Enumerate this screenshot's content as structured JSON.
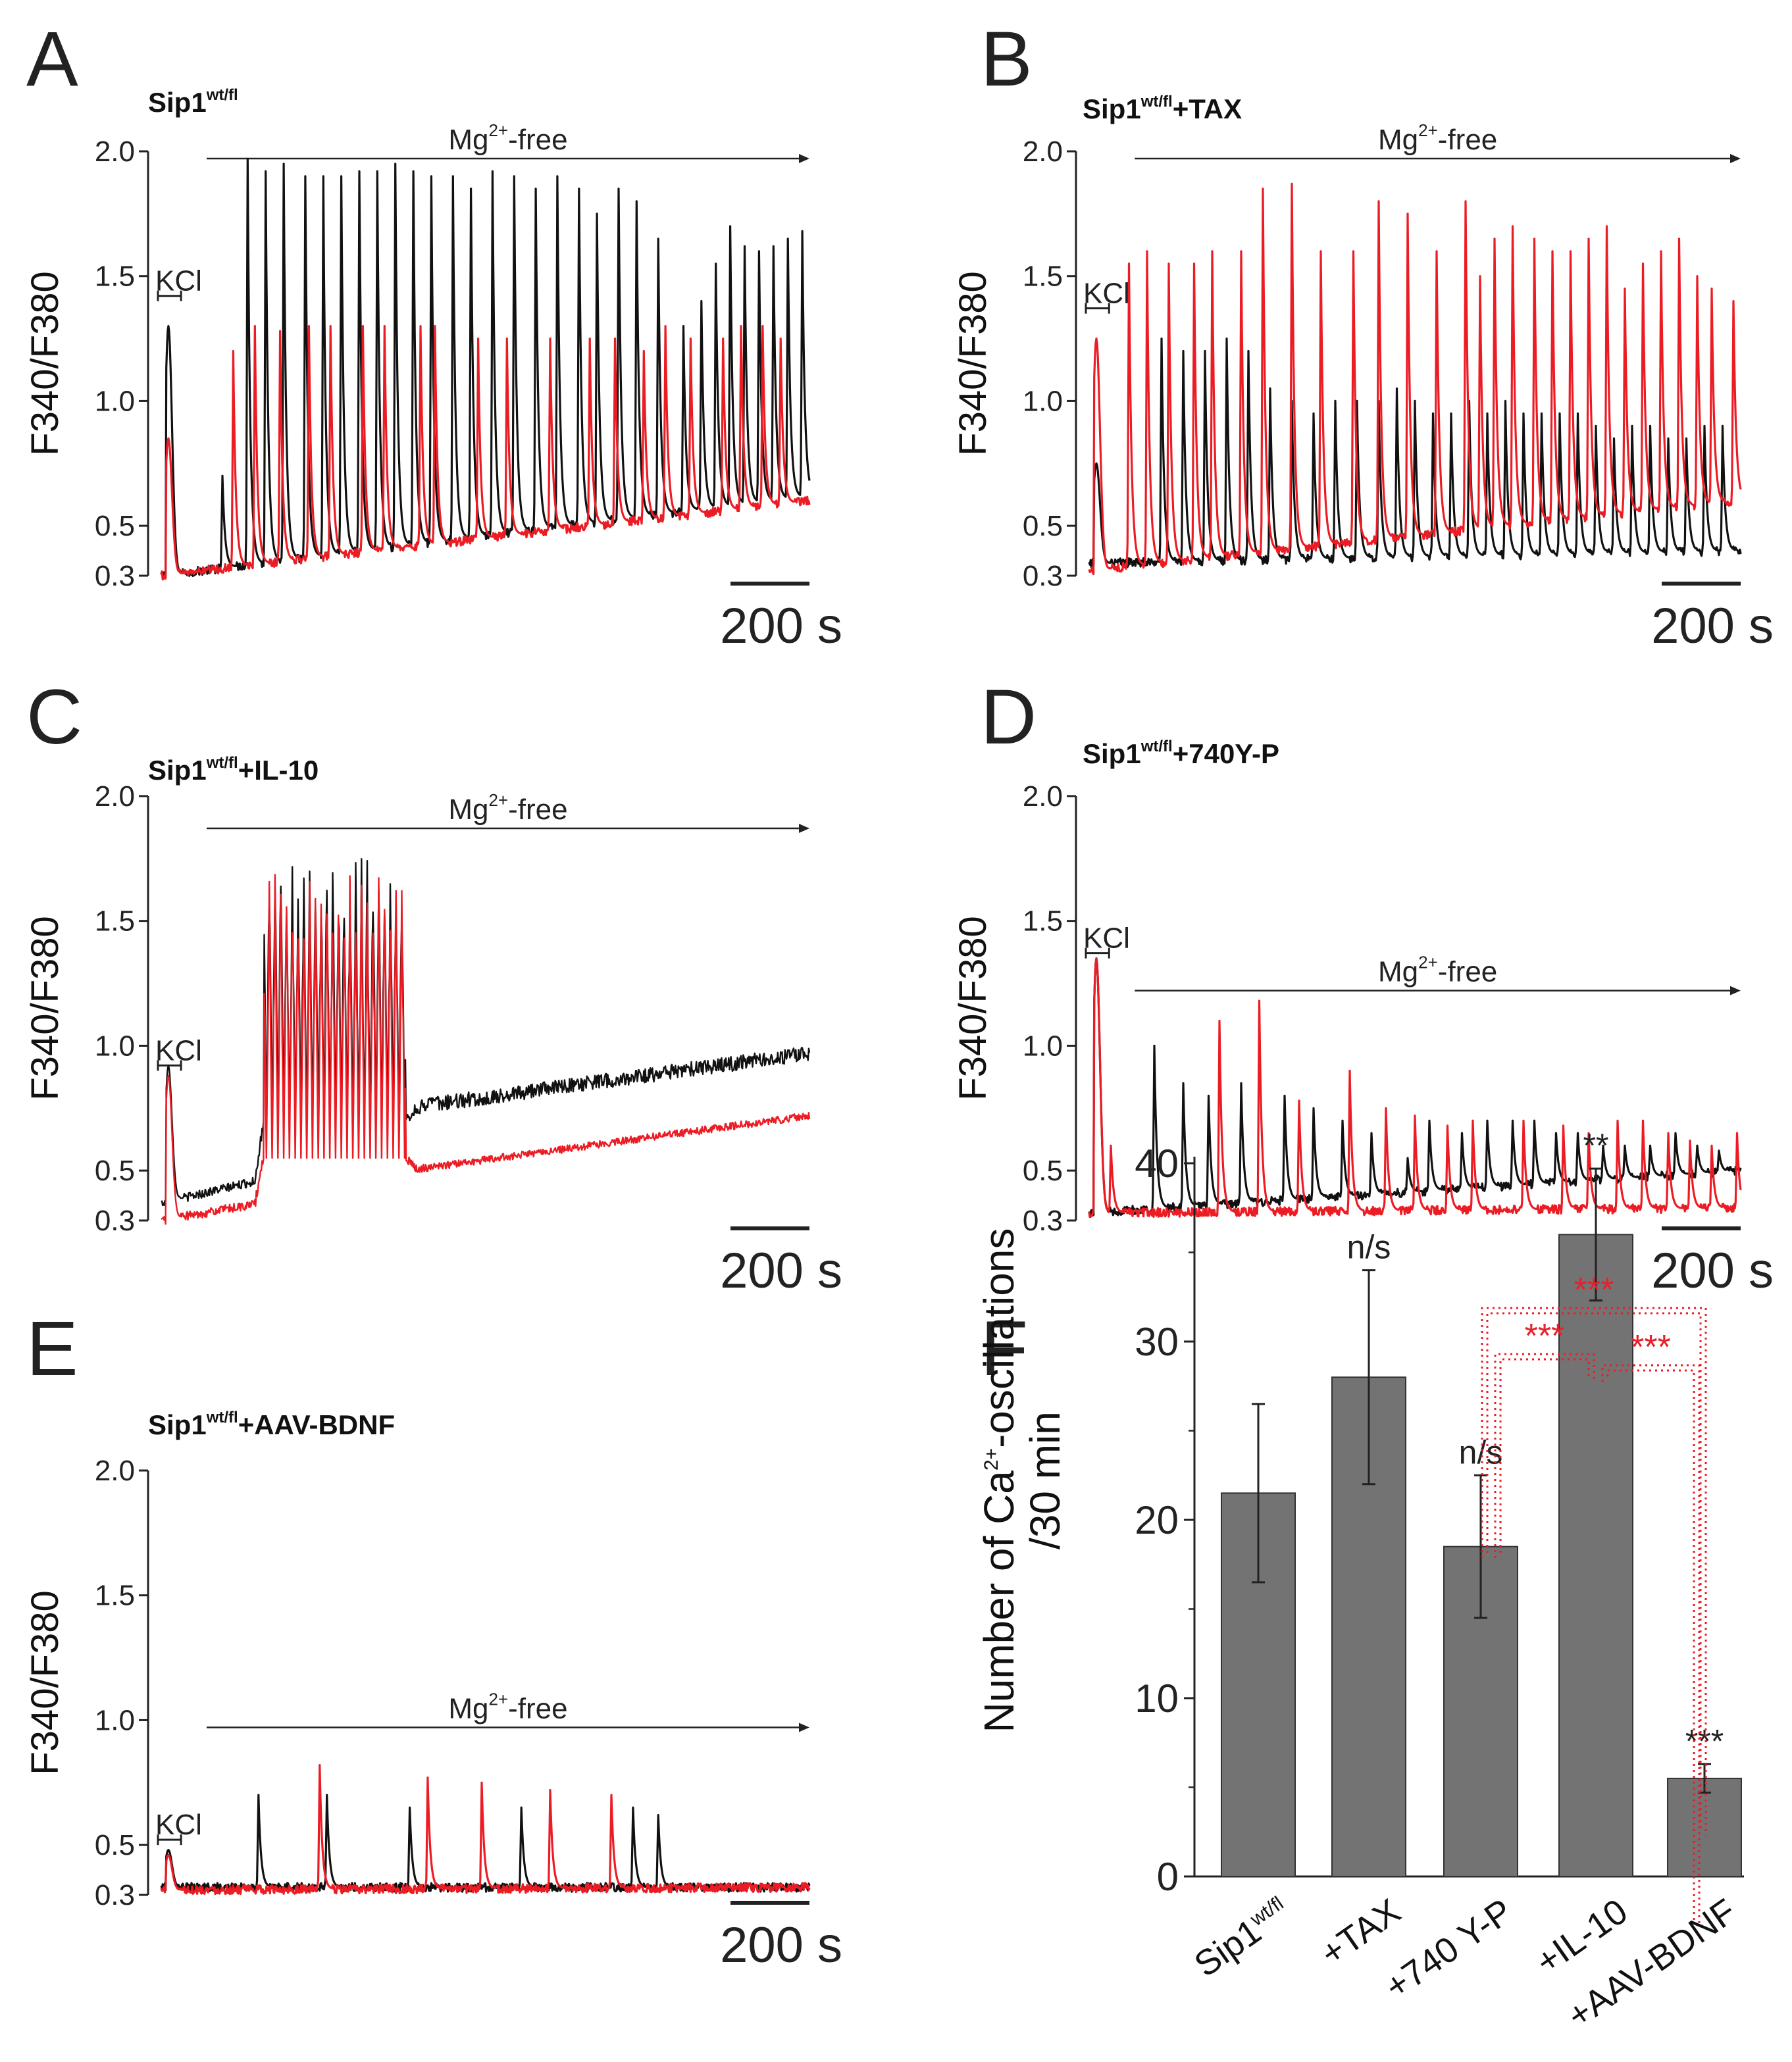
{
  "figure": {
    "trace_colors": {
      "black": "#111111",
      "red": "#ec1c24"
    },
    "bar_color": "#737373"
  },
  "chart_data": [
    {
      "panel": "A",
      "type": "line",
      "title": "Sip1",
      "title_sup": "wt/fl",
      "title_suffix": "",
      "ylabel": "F340/F380",
      "yticks": [
        "0.3",
        "0.5",
        "1.0",
        "1.5",
        "2.0"
      ],
      "ylim": [
        0.3,
        2.0
      ],
      "kcl_label": "KCl",
      "kcl_level": 1.5,
      "mg_label_pre": "Mg",
      "mg_label_sup": "2+",
      "mg_label_post": "-free",
      "mg_level": 2.05,
      "mg_start_frac": 0.07,
      "scalebar_label": "200 s",
      "duration_s": 1800,
      "series": [
        {
          "name": "black",
          "baseline_start": 0.3,
          "baseline_end": 0.62,
          "kcl_peak": 1.3,
          "spike_times": [
            170,
            240,
            290,
            340,
            400,
            450,
            500,
            550,
            600,
            650,
            700,
            750,
            810,
            860,
            920,
            980,
            1040,
            1100,
            1160,
            1210,
            1270,
            1320,
            1380,
            1450,
            1500,
            1540,
            1580,
            1620,
            1660,
            1700,
            1740,
            1780
          ],
          "spike_peaks": [
            0.7,
            1.97,
            1.92,
            1.95,
            1.9,
            1.9,
            1.9,
            1.92,
            1.92,
            1.95,
            1.92,
            1.9,
            1.9,
            1.85,
            1.92,
            1.9,
            1.85,
            1.9,
            1.85,
            1.75,
            1.85,
            1.8,
            1.65,
            1.3,
            1.4,
            1.55,
            1.7,
            1.62,
            1.6,
            1.62,
            1.65,
            1.68
          ]
        },
        {
          "name": "red",
          "baseline_start": 0.3,
          "baseline_end": 0.6,
          "kcl_peak": 0.85,
          "spike_times": [
            200,
            260,
            330,
            410,
            470,
            560,
            620,
            720,
            760,
            880,
            960,
            1080,
            1190,
            1260,
            1340,
            1400,
            1470,
            1560,
            1610,
            1670,
            1720
          ],
          "spike_peaks": [
            1.2,
            1.3,
            1.28,
            1.3,
            1.3,
            1.3,
            1.3,
            1.3,
            1.3,
            1.25,
            1.25,
            1.25,
            1.25,
            1.25,
            1.2,
            1.3,
            1.25,
            1.25,
            1.3,
            1.3,
            1.25
          ]
        }
      ]
    },
    {
      "panel": "B",
      "type": "line",
      "title": "Sip1",
      "title_sup": "wt/fl",
      "title_suffix": "+TAX",
      "ylabel": "F340/F380",
      "yticks": [
        "0.3",
        "0.5",
        "1.0",
        "1.5",
        "2.0"
      ],
      "ylim": [
        0.3,
        2.0
      ],
      "kcl_label": "KCl",
      "kcl_level": 1.45,
      "mg_label_pre": "Mg",
      "mg_label_sup": "2+",
      "mg_label_post": "-free",
      "mg_level": 2.05,
      "mg_start_frac": 0.07,
      "scalebar_label": "200 s",
      "duration_s": 1800,
      "series": [
        {
          "name": "black",
          "baseline_start": 0.35,
          "baseline_end": 0.4,
          "kcl_peak": 0.75,
          "spike_times": [
            200,
            260,
            320,
            380,
            440,
            500,
            560,
            620,
            680,
            740,
            800,
            850,
            900,
            950,
            1000,
            1050,
            1100,
            1150,
            1200,
            1250,
            1300,
            1350,
            1400,
            1450,
            1500,
            1550,
            1600,
            1650,
            1700,
            1750
          ],
          "spike_peaks": [
            1.25,
            1.2,
            1.2,
            1.25,
            1.2,
            1.05,
            1.0,
            0.95,
            1.0,
            1.0,
            1.0,
            1.05,
            1.0,
            0.95,
            0.95,
            1.0,
            0.95,
            1.0,
            0.95,
            0.95,
            0.95,
            0.95,
            0.9,
            0.85,
            0.9,
            0.9,
            0.85,
            0.85,
            0.9,
            0.9
          ]
        },
        {
          "name": "red",
          "baseline_start": 0.32,
          "baseline_end": 0.6,
          "kcl_peak": 1.25,
          "spike_times": [
            110,
            160,
            220,
            290,
            340,
            420,
            480,
            560,
            640,
            730,
            800,
            880,
            960,
            1040,
            1080,
            1120,
            1170,
            1230,
            1280,
            1330,
            1380,
            1430,
            1480,
            1530,
            1580,
            1630,
            1680,
            1720,
            1780
          ],
          "spike_peaks": [
            1.55,
            1.6,
            1.55,
            1.55,
            1.6,
            1.6,
            1.85,
            1.87,
            1.6,
            1.6,
            1.8,
            1.75,
            1.6,
            1.8,
            1.5,
            1.65,
            1.7,
            1.65,
            1.6,
            1.6,
            1.65,
            1.7,
            1.45,
            1.55,
            1.6,
            1.65,
            1.5,
            1.45,
            1.4
          ]
        }
      ]
    },
    {
      "panel": "C",
      "type": "line",
      "title": "Sip1",
      "title_sup": "wt/fl",
      "title_suffix": "+IL-10",
      "ylabel": "F340/F380",
      "yticks": [
        "0.3",
        "0.5",
        "1.0",
        "1.5",
        "2.0"
      ],
      "ylim": [
        0.3,
        2.0
      ],
      "kcl_label": "KCl",
      "kcl_level": 1.0,
      "mg_label_pre": "Mg",
      "mg_label_sup": "2+",
      "mg_label_post": "-free",
      "mg_level": 1.95,
      "mg_start_frac": 0.07,
      "scalebar_label": "200 s",
      "duration_s": 1800,
      "series": [
        {
          "name": "black",
          "baseline_start": 0.37,
          "baseline_end": 0.97,
          "kcl_peak": 0.92,
          "burst_start": 260,
          "burst_end": 680,
          "burst_peak": 1.75,
          "burst_floor": 0.7,
          "post_level_start": 0.75,
          "post_level_end": 0.97
        },
        {
          "name": "red",
          "baseline_start": 0.3,
          "baseline_end": 0.75,
          "kcl_peak": 0.88,
          "burst_start": 260,
          "burst_end": 680,
          "burst_peak": 1.7,
          "burst_floor": 0.55,
          "post_level_start": 0.5,
          "post_level_end": 0.72
        }
      ]
    },
    {
      "panel": "D",
      "type": "line",
      "title": "Sip1",
      "title_sup": "wt/fl",
      "title_suffix": "+740Y-P",
      "ylabel": "F340/F380",
      "yticks": [
        "0.3",
        "0.5",
        "1.0",
        "1.5",
        "2.0"
      ],
      "ylim": [
        0.3,
        2.0
      ],
      "kcl_label": "KCl",
      "kcl_level": 1.45,
      "mg_label_pre": "Mg",
      "mg_label_sup": "2+",
      "mg_label_post": "-free",
      "mg_level": 1.3,
      "mg_start_frac": 0.07,
      "scalebar_label": "200 s",
      "duration_s": 1800,
      "series": [
        {
          "name": "black",
          "baseline_start": 0.33,
          "baseline_end": 0.5,
          "kcl_peak": 1.35,
          "spike_times": [
            180,
            260,
            330,
            420,
            540,
            620,
            700,
            780,
            880,
            940,
            1030,
            1100,
            1170,
            1230,
            1290,
            1350,
            1420,
            1480,
            1550,
            1620,
            1680,
            1740
          ],
          "spike_peaks": [
            1.0,
            0.85,
            0.8,
            0.85,
            0.8,
            0.75,
            0.7,
            0.65,
            0.55,
            0.7,
            0.65,
            0.7,
            0.7,
            0.7,
            0.65,
            0.65,
            0.6,
            0.6,
            0.6,
            0.65,
            0.6,
            0.58
          ]
        },
        {
          "name": "red",
          "baseline_start": 0.33,
          "baseline_end": 0.35,
          "kcl_peak": 1.35,
          "spike_times": [
            60,
            360,
            470,
            580,
            720,
            820,
            900,
            990,
            1060,
            1200,
            1310,
            1380,
            1460,
            1530,
            1600,
            1660,
            1720,
            1790
          ],
          "spike_peaks": [
            0.6,
            1.1,
            1.18,
            0.78,
            0.9,
            0.75,
            0.72,
            0.68,
            0.7,
            0.7,
            0.68,
            0.65,
            0.7,
            0.7,
            0.65,
            0.62,
            0.6,
            0.65
          ]
        }
      ]
    },
    {
      "panel": "E",
      "type": "line",
      "title": "Sip1",
      "title_sup": "wt/fl",
      "title_suffix": "+AAV-BDNF",
      "ylabel": "F340/F380",
      "yticks": [
        "0.3",
        "0.5",
        "1.0",
        "1.5",
        "2.0"
      ],
      "ylim": [
        0.3,
        2.0
      ],
      "kcl_label": "KCl",
      "kcl_level": 0.6,
      "mg_label_pre": "Mg",
      "mg_label_sup": "2+",
      "mg_label_post": "-free",
      "mg_level": 1.05,
      "mg_start_frac": 0.07,
      "scalebar_label": "200 s",
      "duration_s": 1800,
      "series": [
        {
          "name": "black",
          "baseline_start": 0.33,
          "baseline_end": 0.33,
          "kcl_peak": 0.48,
          "spike_times": [
            270,
            460,
            690,
            1000,
            1310,
            1380
          ],
          "spike_peaks": [
            0.7,
            0.7,
            0.65,
            0.65,
            0.65,
            0.62
          ]
        },
        {
          "name": "red",
          "baseline_start": 0.32,
          "baseline_end": 0.33,
          "kcl_peak": 0.46,
          "spike_times": [
            440,
            740,
            890,
            1080,
            1250
          ],
          "spike_peaks": [
            0.82,
            0.77,
            0.75,
            0.72,
            0.7
          ]
        }
      ]
    },
    {
      "panel": "F",
      "type": "bar",
      "categories": [
        "Sip1",
        "+TAX",
        "+740 Y-P",
        "+IL-10",
        "+AAV-BDNF"
      ],
      "category_sup": "wt/fl",
      "values": [
        21.5,
        28,
        18.5,
        36,
        5.5
      ],
      "errors": [
        5,
        6,
        4,
        3.7,
        0.8
      ],
      "significance": [
        "",
        "n/s",
        "n/s",
        "**",
        "***"
      ],
      "ylabel_line1_pre": "Number of Ca",
      "ylabel_line1_sup": "2+",
      "ylabel_line1_post": "-oscillations",
      "ylabel_line2": "/30 min",
      "yticks": [
        "0",
        "10",
        "20",
        "30",
        "40"
      ],
      "ylim": [
        0,
        40
      ],
      "brackets": [
        {
          "from": "+740 Y-P",
          "to": "+AAV-BDNF",
          "label": "***"
        },
        {
          "from": "+740 Y-P",
          "to": "+IL-10",
          "label": "***"
        },
        {
          "from": "+IL-10",
          "to": "+AAV-BDNF",
          "label": "***"
        }
      ]
    }
  ]
}
